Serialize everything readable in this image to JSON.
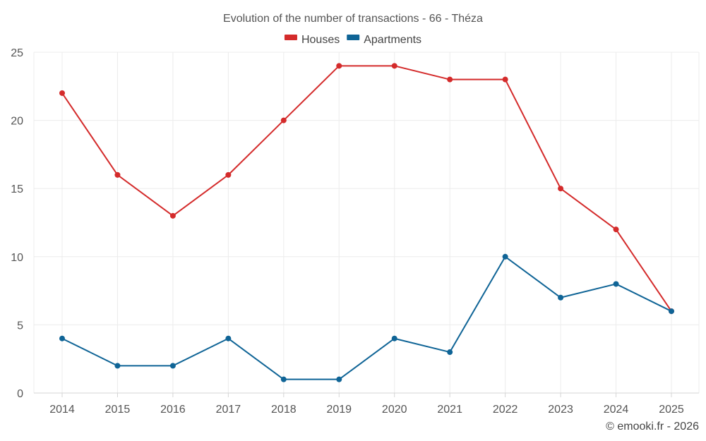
{
  "chart_data": {
    "type": "line",
    "title": "Evolution of the number of transactions - 66 - Théza",
    "xlabel": "",
    "ylabel": "",
    "categories": [
      "2014",
      "2015",
      "2016",
      "2017",
      "2018",
      "2019",
      "2020",
      "2021",
      "2022",
      "2023",
      "2024",
      "2025"
    ],
    "series": [
      {
        "name": "Houses",
        "color": "#d42b2b",
        "values": [
          22,
          16,
          13,
          16,
          20,
          24,
          24,
          23,
          23,
          15,
          12,
          6
        ]
      },
      {
        "name": "Apartments",
        "color": "#0f6496",
        "values": [
          4,
          2,
          2,
          4,
          1,
          1,
          4,
          3,
          10,
          7,
          8,
          6
        ]
      }
    ],
    "ylim": [
      0,
      25
    ],
    "yticks": [
      0,
      5,
      10,
      15,
      20,
      25
    ],
    "grid": true,
    "legend_position": "top-center"
  },
  "credit": "© emooki.fr - 2026"
}
